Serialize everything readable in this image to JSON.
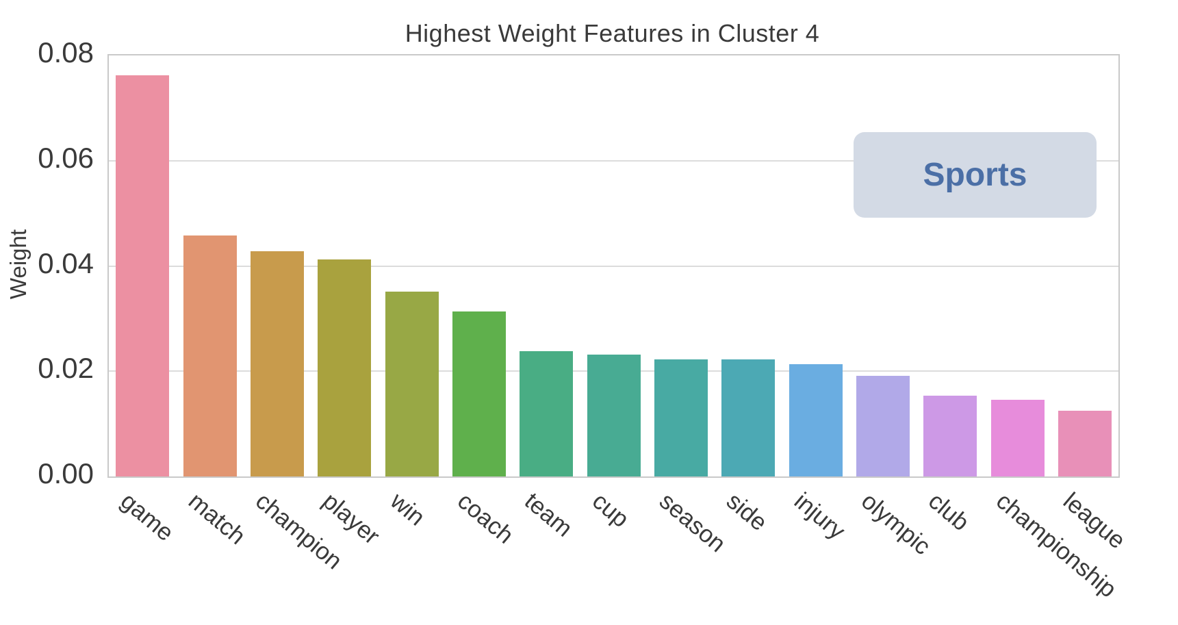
{
  "chart_data": {
    "type": "bar",
    "title": "Highest Weight Features in Cluster 4",
    "xlabel": "",
    "ylabel": "Weight",
    "ylim": [
      0,
      0.08
    ],
    "ytick_values": [
      0,
      0.02,
      0.04,
      0.06,
      0.08
    ],
    "ytick_labels": [
      "0.00",
      "0.02",
      "0.04",
      "0.06",
      "0.08"
    ],
    "grid": true,
    "legend_position": "none",
    "x_tick_rotation_deg": -40,
    "categories": [
      "game",
      "match",
      "champion",
      "player",
      "win",
      "coach",
      "team",
      "cup",
      "season",
      "side",
      "injury",
      "olympic",
      "club",
      "championship",
      "league"
    ],
    "values": [
      0.0762,
      0.0458,
      0.0428,
      0.0413,
      0.0351,
      0.0313,
      0.0238,
      0.0232,
      0.0223,
      0.0222,
      0.0213,
      0.0191,
      0.0153,
      0.0146,
      0.0125
    ],
    "bar_colors": [
      "#ec90a2",
      "#e19571",
      "#c89b4c",
      "#a9a23e",
      "#98a845",
      "#5fb04c",
      "#49ad84",
      "#48ab93",
      "#48aaa3",
      "#4ca9b4",
      "#6aade1",
      "#b1a9e8",
      "#cd99e6",
      "#e78cdb",
      "#e890b8"
    ]
  },
  "annotation": {
    "label": "Sports",
    "background": "#d3dae5",
    "text_color": "#4b6fa6"
  },
  "colors": {
    "grid": "#dcdcdc",
    "spine": "#c9c9c9",
    "text": "#3a3a3a",
    "background": "#ffffff"
  }
}
